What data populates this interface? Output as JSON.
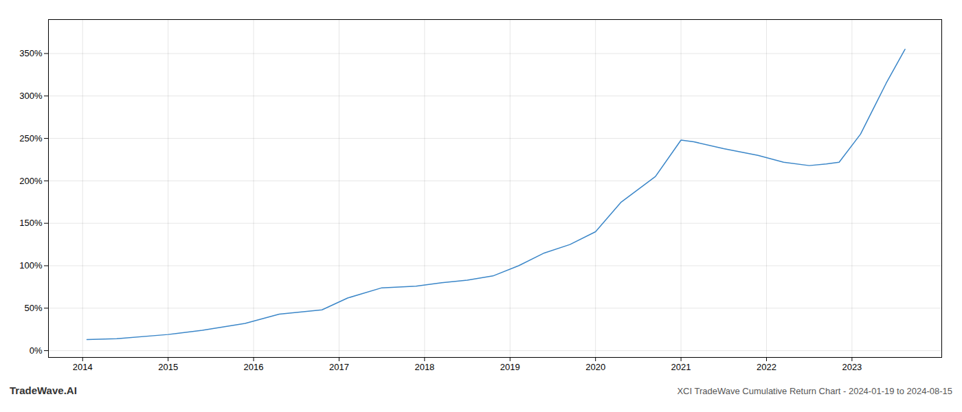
{
  "chart_data": {
    "type": "line",
    "title": "XCI TradeWave Cumulative Return Chart - 2024-01-19 to 2024-08-15",
    "annotations": [
      "TradeWave.AI"
    ],
    "x": [
      2014.05,
      2014.4,
      2015.0,
      2015.4,
      2015.9,
      2016.3,
      2016.8,
      2017.1,
      2017.5,
      2017.9,
      2018.2,
      2018.5,
      2018.8,
      2019.1,
      2019.4,
      2019.7,
      2020.0,
      2020.3,
      2020.7,
      2021.0,
      2021.15,
      2021.5,
      2021.9,
      2022.2,
      2022.5,
      2022.7,
      2022.85,
      2023.1,
      2023.4,
      2023.62
    ],
    "values": [
      13,
      14,
      19,
      24,
      32,
      43,
      48,
      62,
      74,
      76,
      80,
      83,
      88,
      100,
      115,
      125,
      140,
      175,
      205,
      248,
      246,
      238,
      230,
      222,
      218,
      220,
      222,
      255,
      315,
      355
    ],
    "color": "#3a86c8",
    "xlim": [
      2013.6,
      2024.05
    ],
    "xticks": [
      2014,
      2015,
      2016,
      2017,
      2018,
      2019,
      2020,
      2021,
      2022,
      2023
    ],
    "ylim": [
      -8,
      390
    ],
    "yticks": [
      {
        "value": 0,
        "label": "0%"
      },
      {
        "value": 50,
        "label": "50%"
      },
      {
        "value": 100,
        "label": "100%"
      },
      {
        "value": 150,
        "label": "150%"
      },
      {
        "value": 200,
        "label": "200%"
      },
      {
        "value": 250,
        "label": "250%"
      },
      {
        "value": 300,
        "label": "300%"
      },
      {
        "value": 350,
        "label": "350%"
      }
    ],
    "grid": true
  }
}
